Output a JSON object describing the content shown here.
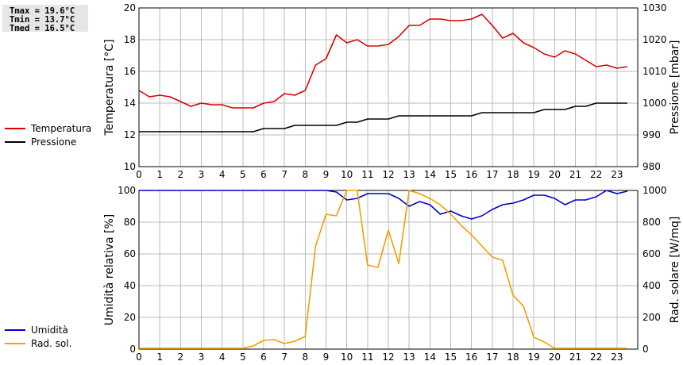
{
  "stats": {
    "tmax": "Tmax = 19.6°C",
    "tmin": "Tmin = 13.7°C",
    "tmed": "Tmed = 16.5°C"
  },
  "colors": {
    "temperature": "#dd0000",
    "pressure": "#000000",
    "humidity": "#0000cc",
    "radiation": "#f0a000",
    "grid": "#bbbbbb"
  },
  "chart_data": [
    {
      "type": "line",
      "legend_position": "left",
      "grid": true,
      "x_ticks": [
        "0",
        "1",
        "2",
        "3",
        "4",
        "5",
        "6",
        "7",
        "8",
        "9",
        "10",
        "11",
        "12",
        "13",
        "14",
        "15",
        "16",
        "17",
        "18",
        "19",
        "20",
        "21",
        "22",
        "23"
      ],
      "xlim": [
        0,
        24
      ],
      "ylabel_left": "Temperatura [°C]",
      "ylim_left": [
        10,
        20
      ],
      "yticks_left": [
        "10",
        "12",
        "14",
        "16",
        "18",
        "20"
      ],
      "ylabel_right": "Pressione [mbar]",
      "ylim_right": [
        980,
        1030
      ],
      "yticks_right": [
        "980",
        "990",
        "1000",
        "1010",
        "1020",
        "1030"
      ],
      "series": [
        {
          "name": "Temperatura",
          "axis": "left",
          "x": [
            0,
            0.5,
            1,
            1.5,
            2,
            2.5,
            3,
            3.5,
            4,
            4.5,
            5,
            5.5,
            6,
            6.5,
            7,
            7.5,
            8,
            8.5,
            9,
            9.5,
            10,
            10.5,
            11,
            11.5,
            12,
            12.5,
            13,
            13.5,
            14,
            14.5,
            15,
            15.5,
            16,
            16.5,
            17,
            17.5,
            18,
            18.5,
            19,
            19.5,
            20,
            20.5,
            21,
            21.5,
            22,
            22.5,
            23,
            23.5
          ],
          "y": [
            14.8,
            14.4,
            14.5,
            14.4,
            14.1,
            13.8,
            14.0,
            13.9,
            13.9,
            13.7,
            13.7,
            13.7,
            14.0,
            14.1,
            14.6,
            14.5,
            14.8,
            16.4,
            16.8,
            18.3,
            17.8,
            18.0,
            17.6,
            17.6,
            17.7,
            18.2,
            18.9,
            18.9,
            19.3,
            19.3,
            19.2,
            19.2,
            19.3,
            19.6,
            18.9,
            18.1,
            18.4,
            17.8,
            17.5,
            17.1,
            16.9,
            17.3,
            17.1,
            16.7,
            16.3,
            16.4,
            16.2,
            16.3
          ]
        },
        {
          "name": "Pressione",
          "axis": "right",
          "x": [
            0,
            0.5,
            1,
            1.5,
            2,
            2.5,
            3,
            3.5,
            4,
            4.5,
            5,
            5.5,
            6,
            6.5,
            7,
            7.5,
            8,
            8.5,
            9,
            9.5,
            10,
            10.5,
            11,
            11.5,
            12,
            12.5,
            13,
            13.5,
            14,
            14.5,
            15,
            15.5,
            16,
            16.5,
            17,
            17.5,
            18,
            18.5,
            19,
            19.5,
            20,
            20.5,
            21,
            21.5,
            22,
            22.5,
            23,
            23.5
          ],
          "y": [
            991,
            991,
            991,
            991,
            991,
            991,
            991,
            991,
            991,
            991,
            991,
            991,
            992,
            992,
            992,
            993,
            993,
            993,
            993,
            993,
            994,
            994,
            995,
            995,
            995,
            996,
            996,
            996,
            996,
            996,
            996,
            996,
            996,
            997,
            997,
            997,
            997,
            997,
            997,
            998,
            998,
            998,
            999,
            999,
            1000,
            1000,
            1000,
            1000
          ]
        }
      ]
    },
    {
      "type": "line",
      "legend_position": "left",
      "grid": true,
      "x_ticks": [
        "0",
        "1",
        "2",
        "3",
        "4",
        "5",
        "6",
        "7",
        "8",
        "9",
        "10",
        "11",
        "12",
        "13",
        "14",
        "15",
        "16",
        "17",
        "18",
        "19",
        "20",
        "21",
        "22",
        "23"
      ],
      "xlim": [
        0,
        24
      ],
      "ylabel_left": "Umidità relativa [%]",
      "ylim_left": [
        0,
        100
      ],
      "yticks_left": [
        "0",
        "20",
        "40",
        "60",
        "80",
        "100"
      ],
      "ylabel_right": "Rad. solare [W/mq]",
      "ylim_right": [
        0,
        1000
      ],
      "yticks_right": [
        "0",
        "200",
        "400",
        "600",
        "800",
        "1000"
      ],
      "series": [
        {
          "name": "Umidità",
          "axis": "left",
          "x": [
            0,
            0.5,
            1,
            1.5,
            2,
            2.5,
            3,
            3.5,
            4,
            4.5,
            5,
            5.5,
            6,
            6.5,
            7,
            7.5,
            8,
            8.5,
            9,
            9.5,
            10,
            10.5,
            11,
            11.5,
            12,
            12.5,
            13,
            13.5,
            14,
            14.5,
            15,
            15.5,
            16,
            16.5,
            17,
            17.5,
            18,
            18.5,
            19,
            19.5,
            20,
            20.5,
            21,
            21.5,
            22,
            22.5,
            23,
            23.5
          ],
          "y": [
            100,
            100,
            100,
            100,
            100,
            100,
            100,
            100,
            100,
            100,
            100,
            100,
            100,
            100,
            100,
            100,
            100,
            100,
            100,
            99,
            94,
            95,
            98,
            98,
            98,
            95,
            90,
            93,
            91,
            85,
            87,
            84,
            82,
            84,
            88,
            91,
            92,
            94,
            97,
            97,
            95,
            91,
            94,
            94,
            96,
            100,
            98,
            99.5
          ]
        },
        {
          "name": "Rad. sol.",
          "axis": "right",
          "x": [
            0,
            0.5,
            1,
            1.5,
            2,
            2.5,
            3,
            3.5,
            4,
            4.5,
            5,
            5.5,
            6,
            6.5,
            7,
            7.5,
            8,
            8.5,
            9,
            9.5,
            10,
            10.5,
            11,
            11.5,
            12,
            12.5,
            13,
            13.5,
            14,
            14.5,
            15,
            15.5,
            16,
            16.5,
            17,
            17.5,
            18,
            18.5,
            19,
            19.5,
            20,
            20.5,
            21,
            21.5,
            22,
            22.5,
            23,
            23.5
          ],
          "y": [
            5,
            5,
            5,
            5,
            5,
            5,
            5,
            5,
            5,
            5,
            5,
            20,
            55,
            60,
            35,
            50,
            80,
            650,
            850,
            840,
            1000,
            1000,
            530,
            515,
            750,
            540,
            1000,
            980,
            950,
            910,
            850,
            780,
            720,
            650,
            580,
            560,
            340,
            270,
            75,
            45,
            5,
            5,
            5,
            5,
            5,
            5,
            5,
            5
          ]
        }
      ]
    }
  ]
}
